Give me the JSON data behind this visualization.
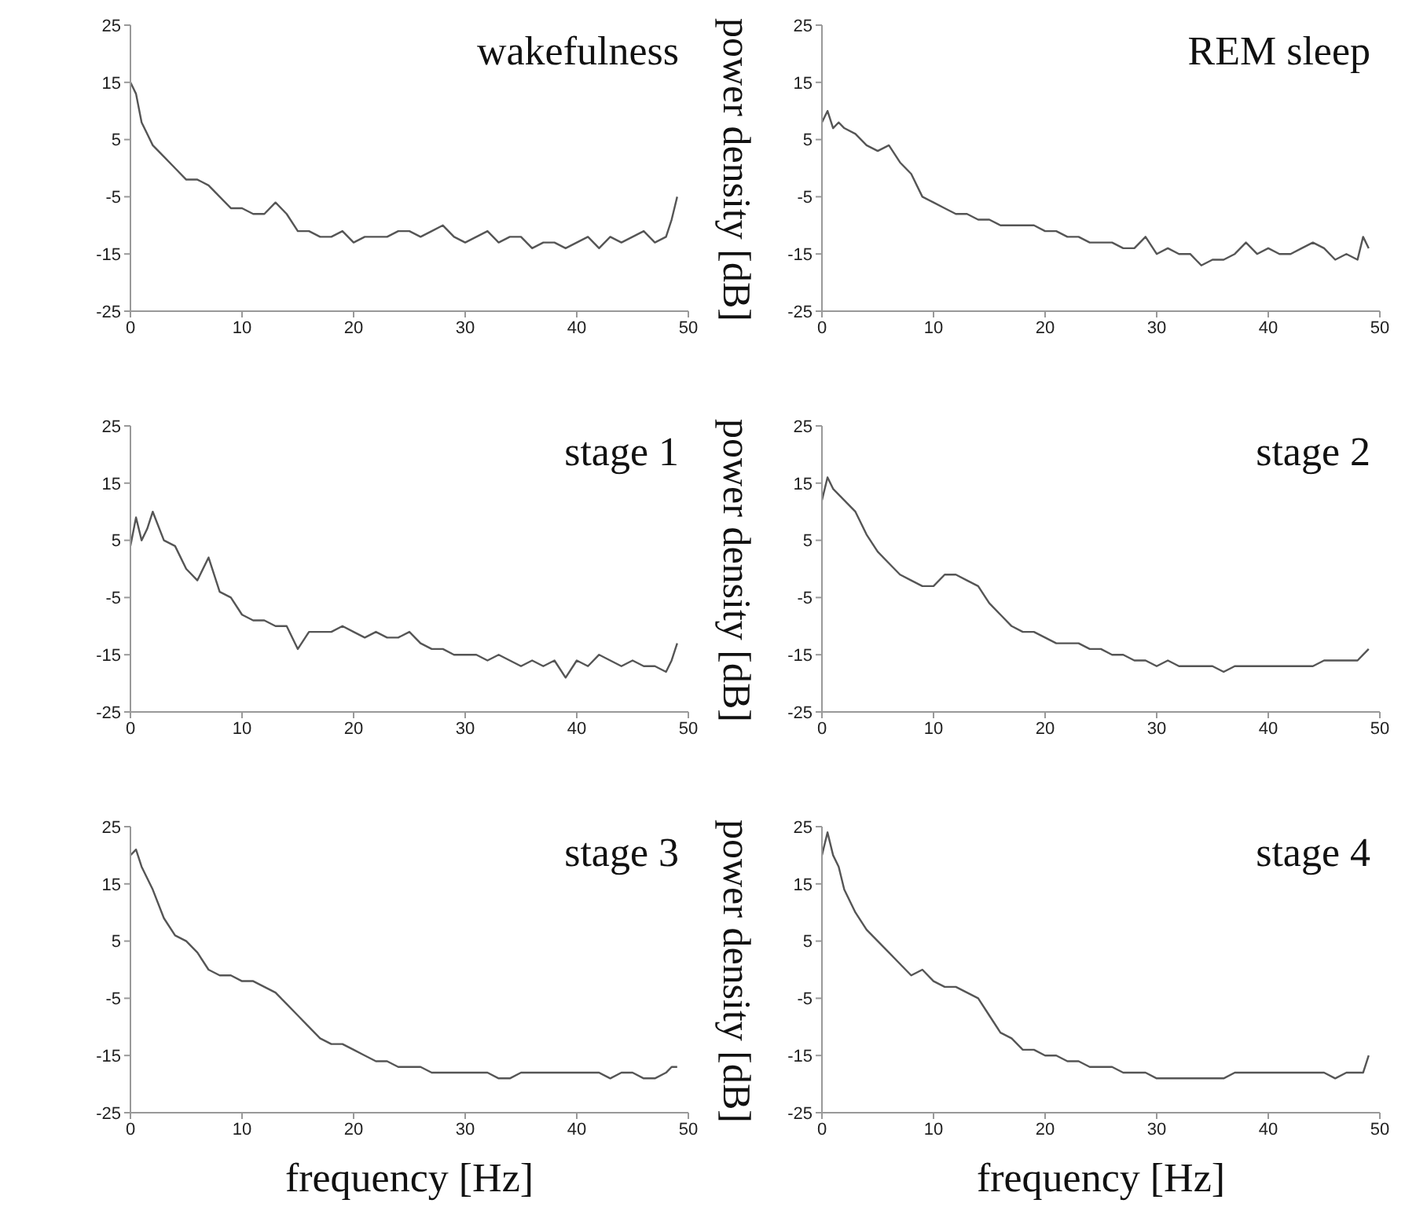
{
  "chart_data": [
    {
      "type": "line",
      "title": "wakefulness",
      "x": [
        0,
        0.5,
        1,
        1.5,
        2,
        3,
        4,
        5,
        6,
        7,
        8,
        9,
        10,
        11,
        12,
        13,
        14,
        15,
        16,
        17,
        18,
        19,
        20,
        21,
        22,
        23,
        24,
        25,
        26,
        27,
        28,
        29,
        30,
        31,
        32,
        33,
        34,
        35,
        36,
        37,
        38,
        39,
        40,
        41,
        42,
        43,
        44,
        45,
        46,
        47,
        48,
        48.5,
        49
      ],
      "series": [
        {
          "color": "#555555",
          "values": [
            15,
            13,
            8,
            6,
            4,
            2,
            0,
            -2,
            -2,
            -3,
            -5,
            -7,
            -7,
            -8,
            -8,
            -6,
            -8,
            -11,
            -11,
            -12,
            -12,
            -11,
            -13,
            -12,
            -12,
            -12,
            -11,
            -11,
            -12,
            -11,
            -10,
            -12,
            -13,
            -12,
            -11,
            -13,
            -12,
            -12,
            -14,
            -13,
            -13,
            -14,
            -13,
            -12,
            -14,
            -12,
            -13,
            -12,
            -11,
            -13,
            -12,
            -9,
            -5
          ]
        }
      ],
      "xlim": [
        0,
        50
      ],
      "xticks": [
        0,
        10,
        20,
        30,
        40,
        50
      ],
      "ylim": [
        -25,
        25
      ],
      "yticks": [
        -25,
        -15,
        -5,
        5,
        15,
        25
      ]
    },
    {
      "type": "line",
      "title": "REM sleep",
      "ylabel": "power density [dB]",
      "x": [
        0,
        0.5,
        1,
        1.5,
        2,
        3,
        4,
        5,
        6,
        7,
        8,
        9,
        10,
        11,
        12,
        13,
        14,
        15,
        16,
        17,
        18,
        19,
        20,
        21,
        22,
        23,
        24,
        25,
        26,
        27,
        28,
        29,
        30,
        31,
        32,
        33,
        34,
        35,
        36,
        37,
        38,
        39,
        40,
        41,
        42,
        43,
        44,
        45,
        46,
        47,
        48,
        48.5,
        49
      ],
      "series": [
        {
          "color": "#555555",
          "values": [
            8,
            10,
            7,
            8,
            7,
            6,
            4,
            3,
            4,
            1,
            -1,
            -5,
            -6,
            -7,
            -8,
            -8,
            -9,
            -9,
            -10,
            -10,
            -10,
            -10,
            -11,
            -11,
            -12,
            -12,
            -13,
            -13,
            -13,
            -14,
            -14,
            -12,
            -15,
            -14,
            -15,
            -15,
            -17,
            -16,
            -16,
            -15,
            -13,
            -15,
            -14,
            -15,
            -15,
            -14,
            -13,
            -14,
            -16,
            -15,
            -16,
            -12,
            -14
          ]
        }
      ],
      "xlim": [
        0,
        50
      ],
      "xticks": [
        0,
        10,
        20,
        30,
        40,
        50
      ],
      "ylim": [
        -25,
        25
      ],
      "yticks": [
        -25,
        -15,
        -5,
        5,
        15,
        25
      ]
    },
    {
      "type": "line",
      "title": "stage 1",
      "x": [
        0,
        0.5,
        1,
        1.5,
        2,
        3,
        4,
        5,
        6,
        7,
        8,
        9,
        10,
        11,
        12,
        13,
        14,
        15,
        16,
        17,
        18,
        19,
        20,
        21,
        22,
        23,
        24,
        25,
        26,
        27,
        28,
        29,
        30,
        31,
        32,
        33,
        34,
        35,
        36,
        37,
        38,
        39,
        40,
        41,
        42,
        43,
        44,
        45,
        46,
        47,
        48,
        48.5,
        49
      ],
      "series": [
        {
          "color": "#555555",
          "values": [
            4,
            9,
            5,
            7,
            10,
            5,
            4,
            0,
            -2,
            2,
            -4,
            -5,
            -8,
            -9,
            -9,
            -10,
            -10,
            -14,
            -11,
            -11,
            -11,
            -10,
            -11,
            -12,
            -11,
            -12,
            -12,
            -11,
            -13,
            -14,
            -14,
            -15,
            -15,
            -15,
            -16,
            -15,
            -16,
            -17,
            -16,
            -17,
            -16,
            -19,
            -16,
            -17,
            -15,
            -16,
            -17,
            -16,
            -17,
            -17,
            -18,
            -16,
            -13
          ]
        }
      ],
      "xlim": [
        0,
        50
      ],
      "xticks": [
        0,
        10,
        20,
        30,
        40,
        50
      ],
      "ylim": [
        -25,
        25
      ],
      "yticks": [
        -25,
        -15,
        -5,
        5,
        15,
        25
      ]
    },
    {
      "type": "line",
      "title": "stage 2",
      "ylabel": "power density [dB]",
      "x": [
        0,
        0.5,
        1,
        1.5,
        2,
        3,
        4,
        5,
        6,
        7,
        8,
        9,
        10,
        11,
        12,
        13,
        14,
        15,
        16,
        17,
        18,
        19,
        20,
        21,
        22,
        23,
        24,
        25,
        26,
        27,
        28,
        29,
        30,
        31,
        32,
        33,
        34,
        35,
        36,
        37,
        38,
        39,
        40,
        41,
        42,
        43,
        44,
        45,
        46,
        47,
        48,
        48.5,
        49
      ],
      "series": [
        {
          "color": "#555555",
          "values": [
            12,
            16,
            14,
            13,
            12,
            10,
            6,
            3,
            1,
            -1,
            -2,
            -3,
            -3,
            -1,
            -1,
            -2,
            -3,
            -6,
            -8,
            -10,
            -11,
            -11,
            -12,
            -13,
            -13,
            -13,
            -14,
            -14,
            -15,
            -15,
            -16,
            -16,
            -17,
            -16,
            -17,
            -17,
            -17,
            -17,
            -18,
            -17,
            -17,
            -17,
            -17,
            -17,
            -17,
            -17,
            -17,
            -16,
            -16,
            -16,
            -16,
            -15,
            -14
          ]
        }
      ],
      "xlim": [
        0,
        50
      ],
      "xticks": [
        0,
        10,
        20,
        30,
        40,
        50
      ],
      "ylim": [
        -25,
        25
      ],
      "yticks": [
        -25,
        -15,
        -5,
        5,
        15,
        25
      ]
    },
    {
      "type": "line",
      "title": "stage 3",
      "xlabel": "frequency [Hz]",
      "x": [
        0,
        0.5,
        1,
        1.5,
        2,
        3,
        4,
        5,
        6,
        7,
        8,
        9,
        10,
        11,
        12,
        13,
        14,
        15,
        16,
        17,
        18,
        19,
        20,
        21,
        22,
        23,
        24,
        25,
        26,
        27,
        28,
        29,
        30,
        31,
        32,
        33,
        34,
        35,
        36,
        37,
        38,
        39,
        40,
        41,
        42,
        43,
        44,
        45,
        46,
        47,
        48,
        48.5,
        49
      ],
      "series": [
        {
          "color": "#555555",
          "values": [
            20,
            21,
            18,
            16,
            14,
            9,
            6,
            5,
            3,
            0,
            -1,
            -1,
            -2,
            -2,
            -3,
            -4,
            -6,
            -8,
            -10,
            -12,
            -13,
            -13,
            -14,
            -15,
            -16,
            -16,
            -17,
            -17,
            -17,
            -18,
            -18,
            -18,
            -18,
            -18,
            -18,
            -19,
            -19,
            -18,
            -18,
            -18,
            -18,
            -18,
            -18,
            -18,
            -18,
            -19,
            -18,
            -18,
            -19,
            -19,
            -18,
            -17,
            -17
          ]
        }
      ],
      "xlim": [
        0,
        50
      ],
      "xticks": [
        0,
        10,
        20,
        30,
        40,
        50
      ],
      "ylim": [
        -25,
        25
      ],
      "yticks": [
        -25,
        -15,
        -5,
        5,
        15,
        25
      ]
    },
    {
      "type": "line",
      "title": "stage 4",
      "xlabel": "frequency [Hz]",
      "ylabel": "power density [dB]",
      "x": [
        0,
        0.5,
        1,
        1.5,
        2,
        3,
        4,
        5,
        6,
        7,
        8,
        9,
        10,
        11,
        12,
        13,
        14,
        15,
        16,
        17,
        18,
        19,
        20,
        21,
        22,
        23,
        24,
        25,
        26,
        27,
        28,
        29,
        30,
        31,
        32,
        33,
        34,
        35,
        36,
        37,
        38,
        39,
        40,
        41,
        42,
        43,
        44,
        45,
        46,
        47,
        48,
        48.5,
        49
      ],
      "series": [
        {
          "color": "#555555",
          "values": [
            20,
            24,
            20,
            18,
            14,
            10,
            7,
            5,
            3,
            1,
            -1,
            0,
            -2,
            -3,
            -3,
            -4,
            -5,
            -8,
            -11,
            -12,
            -14,
            -14,
            -15,
            -15,
            -16,
            -16,
            -17,
            -17,
            -17,
            -18,
            -18,
            -18,
            -19,
            -19,
            -19,
            -19,
            -19,
            -19,
            -19,
            -18,
            -18,
            -18,
            -18,
            -18,
            -18,
            -18,
            -18,
            -18,
            -19,
            -18,
            -18,
            -18,
            -15
          ]
        }
      ],
      "xlim": [
        0,
        50
      ],
      "xticks": [
        0,
        10,
        20,
        30,
        40,
        50
      ],
      "ylim": [
        -25,
        25
      ],
      "yticks": [
        -25,
        -15,
        -5,
        5,
        15,
        25
      ]
    }
  ]
}
